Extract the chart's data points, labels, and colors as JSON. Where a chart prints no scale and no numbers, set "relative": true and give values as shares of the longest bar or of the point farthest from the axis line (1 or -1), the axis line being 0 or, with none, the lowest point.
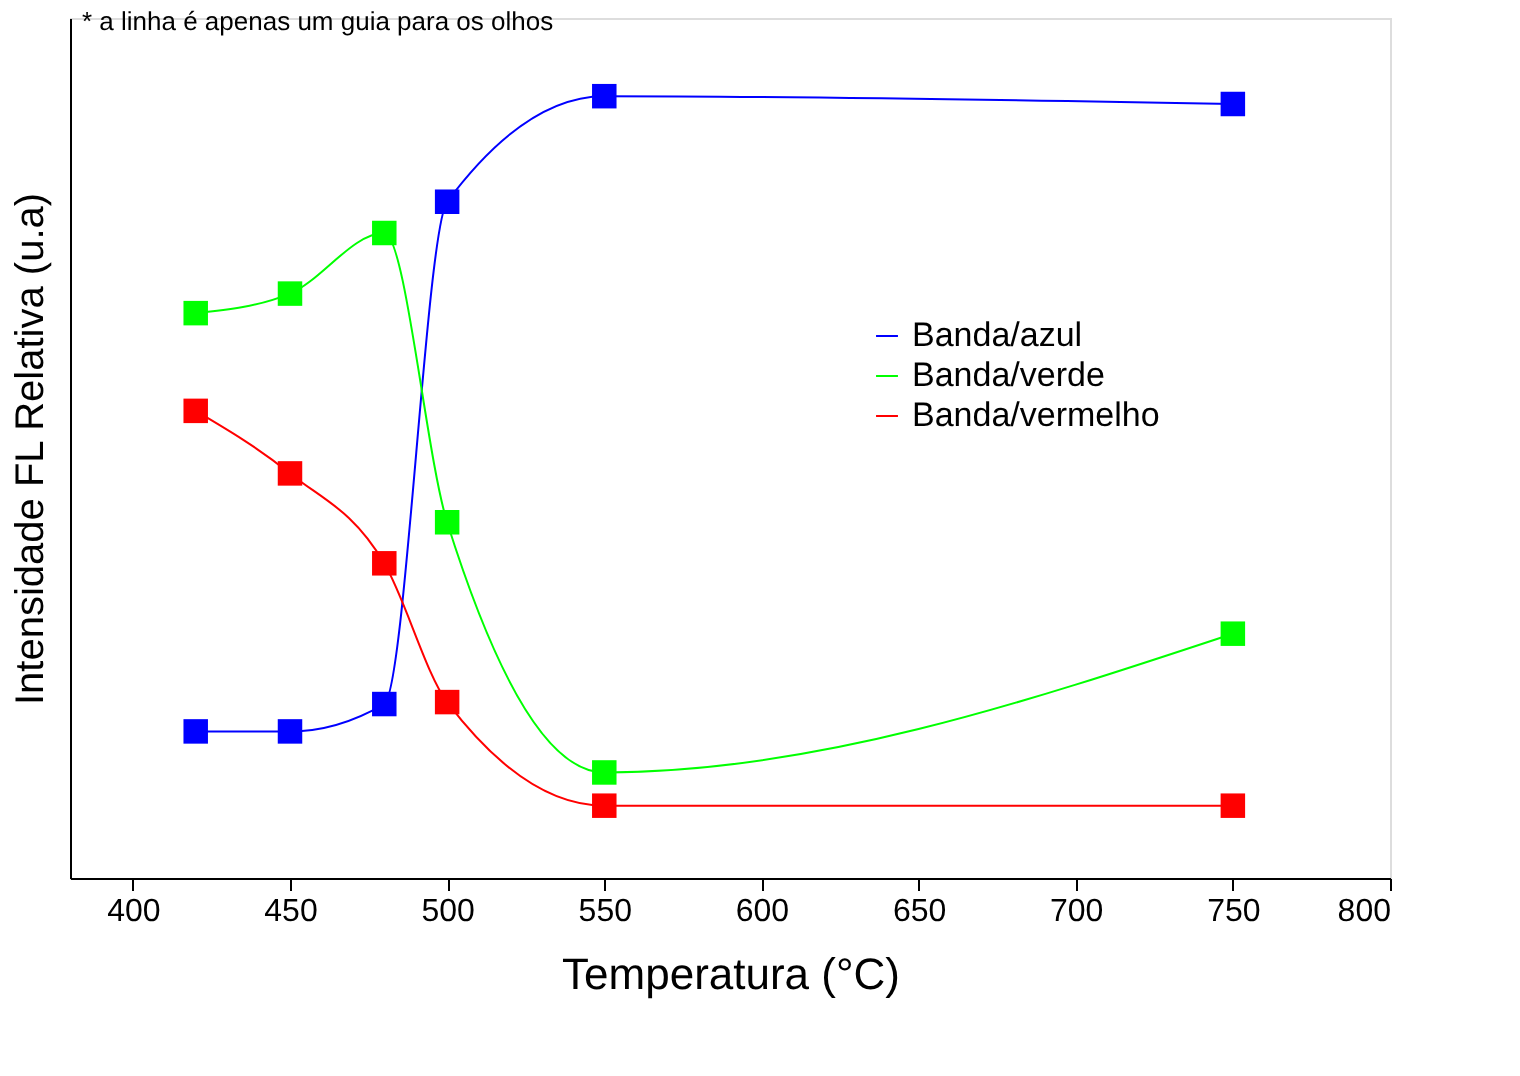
{
  "chart_data": {
    "type": "line",
    "relative": true,
    "xlabel": "Temperatura (°C)",
    "ylabel": "Intensidade FL Relativa (u.a)",
    "annotations": [
      "* a linha é apenas um guia para os olhos"
    ],
    "x": [
      420,
      450,
      480,
      500,
      550,
      750
    ],
    "xlim": [
      380,
      800
    ],
    "xticks": [
      400,
      450,
      500,
      550,
      600,
      650,
      700,
      750,
      800
    ],
    "marker": "square",
    "legend": "right",
    "grid": false,
    "series": [
      {
        "name": "Banda/azul",
        "color": "#0000ff",
        "values": [
          0.1875,
          0.1875,
          0.2225,
          0.865,
          1,
          0.99
        ]
      },
      {
        "name": "Banda/verde",
        "color": "#00ff00",
        "values": [
          0.7225,
          0.7475,
          0.825,
          0.455,
          0.135,
          0.3125
        ]
      },
      {
        "name": "Banda/vermelho",
        "color": "#ff0000",
        "values": [
          0.5975,
          0.5175,
          0.4025,
          0.225,
          0.0925,
          0.0925
        ]
      }
    ]
  }
}
